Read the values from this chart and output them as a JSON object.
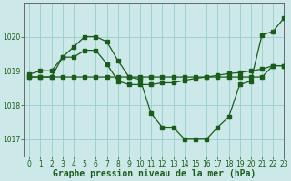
{
  "background_color": "#cce8e8",
  "grid_color": "#99cccc",
  "line_color": "#1a5c1a",
  "spine_color": "#555555",
  "title": "Graphe pression niveau de la mer (hPa)",
  "xlim": [
    -0.5,
    23
  ],
  "ylim": [
    1016.5,
    1021.0
  ],
  "yticks": [
    1017,
    1018,
    1019,
    1020
  ],
  "xticks": [
    0,
    1,
    2,
    3,
    4,
    5,
    6,
    7,
    8,
    9,
    10,
    11,
    12,
    13,
    14,
    15,
    16,
    17,
    18,
    19,
    20,
    21,
    22,
    23
  ],
  "series1_x": [
    0,
    1,
    2,
    3,
    4,
    5,
    6,
    7,
    8,
    9,
    10,
    11,
    12,
    13,
    14,
    15,
    16,
    17,
    18,
    19,
    20,
    21,
    22,
    23
  ],
  "series1_y": [
    1018.82,
    1018.82,
    1018.82,
    1018.82,
    1018.82,
    1018.82,
    1018.82,
    1018.82,
    1018.82,
    1018.82,
    1018.82,
    1018.82,
    1018.82,
    1018.82,
    1018.82,
    1018.82,
    1018.82,
    1018.82,
    1018.82,
    1018.82,
    1018.82,
    1018.82,
    1019.15,
    1019.15
  ],
  "series2_x": [
    0,
    1,
    2,
    3,
    4,
    5,
    6,
    7,
    8,
    9,
    10,
    11,
    12,
    13,
    14,
    15,
    16,
    17,
    18,
    19,
    20,
    21,
    22,
    23
  ],
  "series2_y": [
    1018.82,
    1018.82,
    1018.82,
    1019.4,
    1019.4,
    1019.6,
    1019.6,
    1019.2,
    1018.7,
    1018.6,
    1018.6,
    1018.6,
    1018.65,
    1018.65,
    1018.72,
    1018.78,
    1018.82,
    1018.87,
    1018.92,
    1018.95,
    1019.0,
    1019.05,
    1019.15,
    1019.15
  ],
  "series3_x": [
    0,
    1,
    2,
    3,
    4,
    5,
    6,
    7,
    8,
    9,
    10,
    11,
    12,
    13,
    14,
    15,
    16,
    17,
    18,
    19,
    20,
    21,
    22,
    23
  ],
  "series3_y": [
    1018.9,
    1019.0,
    1019.0,
    1019.4,
    1019.7,
    1020.0,
    1020.0,
    1019.85,
    1019.3,
    1018.82,
    1018.75,
    1017.75,
    1017.35,
    1017.35,
    1017.0,
    1017.0,
    1017.0,
    1017.35,
    1017.65,
    1018.6,
    1018.7,
    1020.05,
    1020.15,
    1020.55
  ],
  "marker_size": 2.2,
  "line_width": 0.9,
  "title_fontsize": 7,
  "tick_fontsize": 5.5
}
